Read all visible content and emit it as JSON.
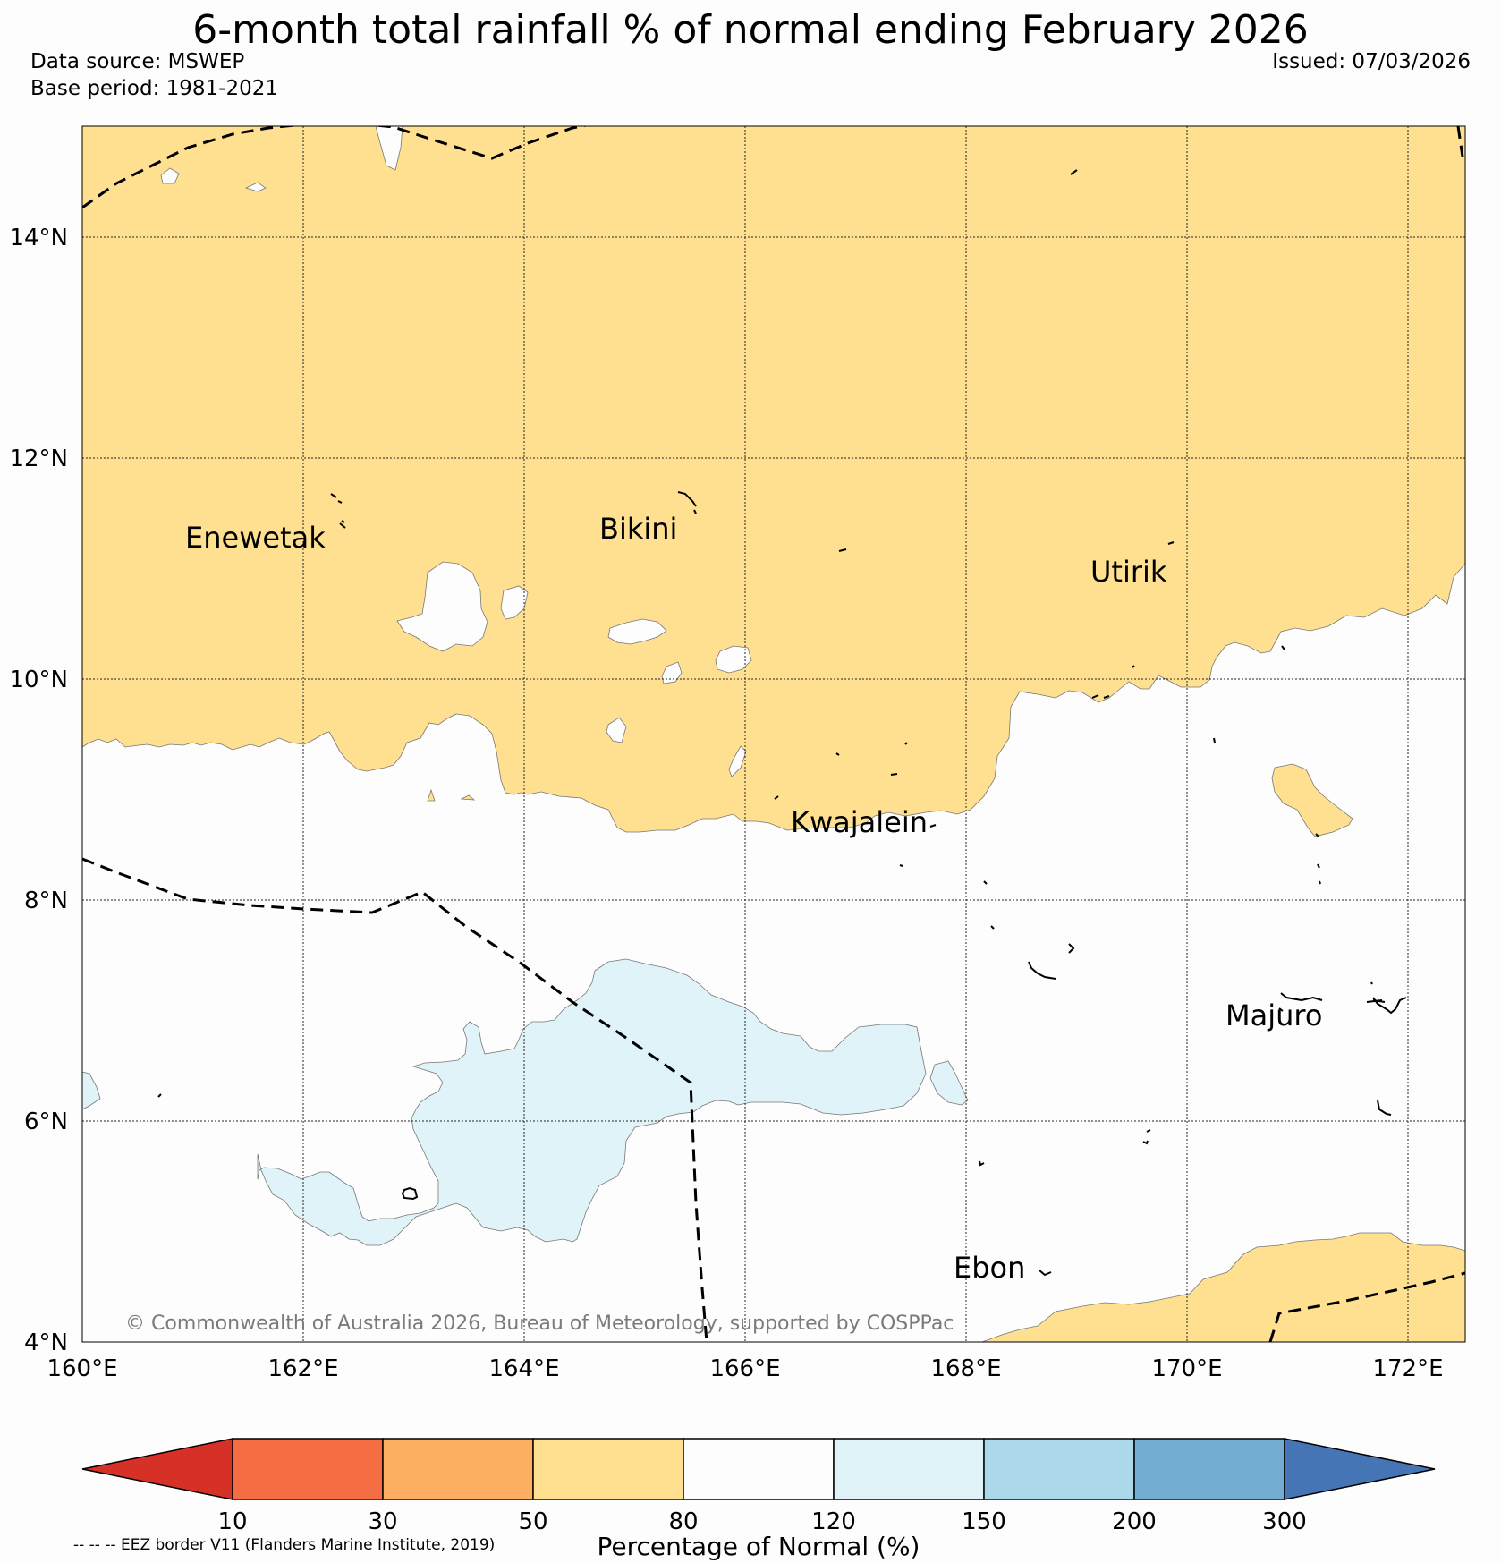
{
  "title": "6-month total rainfall % of normal ending February 2026",
  "data_source": "Data source: MSWEP",
  "base_period": "Base period: 1981-2021",
  "issued": "Issued: 07/03/2026",
  "copyright": "© Commonwealth of Australia 2026, Bureau of Meteorology, supported by COSPPac",
  "eez_note": "-- -- -- EEZ border V11 (Flanders Marine Institute, 2019)",
  "axes": {
    "lat_labels": [
      "14°N",
      "12°N",
      "10°N",
      "8°N",
      "6°N",
      "4°N"
    ],
    "lon_labels": [
      "160°E",
      "162°E",
      "164°E",
      "166°E",
      "168°E",
      "170°E",
      "172°E"
    ]
  },
  "places": [
    {
      "name": "Enewetak"
    },
    {
      "name": "Bikini"
    },
    {
      "name": "Utirik"
    },
    {
      "name": "Kwajalein"
    },
    {
      "name": "Majuro"
    },
    {
      "name": "Ebon"
    }
  ],
  "colorbar": {
    "label": "Percentage of Normal (%)",
    "ticks": [
      "10",
      "30",
      "50",
      "80",
      "120",
      "150",
      "200",
      "300"
    ],
    "colors": [
      "#d73027",
      "#f46d43",
      "#fdae61",
      "#fee090",
      "#fdfdfd",
      "#e0f3f8",
      "#abd9e9",
      "#74add1",
      "#4575b4"
    ]
  },
  "colors": {
    "dry": "#fee090",
    "normal": "#fdfdfd",
    "wet": "#e0f3f8"
  }
}
